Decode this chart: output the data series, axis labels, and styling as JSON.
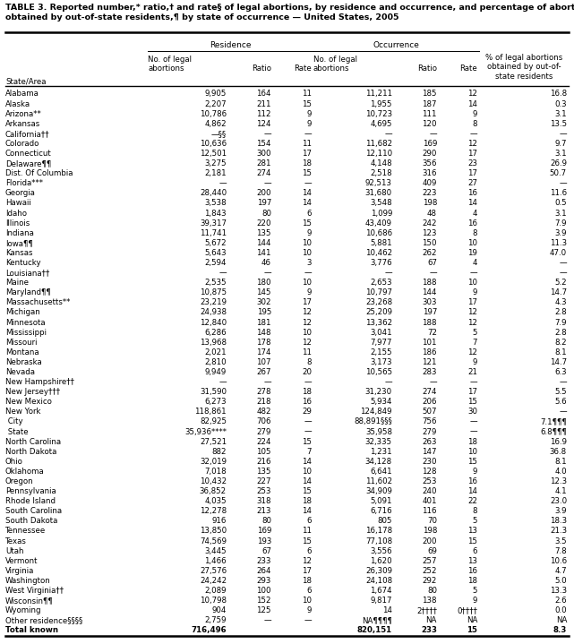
{
  "title_line1": "TABLE 3. Reported number,* ratio,† and rate§ of legal abortions, by residence and occurrence, and percentage of abortions",
  "title_line2": "obtained by out-of-state residents,¶ by state of occurrence — United States, 2005",
  "col_headers_row1": [
    "",
    "Residence",
    "",
    "",
    "Occurrence",
    "",
    "",
    "% of legal abortions"
  ],
  "col_headers_row2": [
    "State/Area",
    "No. of legal\nabortions",
    "Ratio",
    "Rate",
    "No. of legal\nabortions",
    "Ratio",
    "Rate",
    "obtained by out-of-\nstate residents"
  ],
  "rows": [
    [
      "Alabama",
      "9,905",
      "164",
      "11",
      "11,211",
      "185",
      "12",
      "16.8"
    ],
    [
      "Alaska",
      "2,207",
      "211",
      "15",
      "1,955",
      "187",
      "14",
      "0.3"
    ],
    [
      "Arizona**",
      "10,786",
      "112",
      "9",
      "10,723",
      "111",
      "9",
      "3.1"
    ],
    [
      "Arkansas",
      "4,862",
      "124",
      "9",
      "4,695",
      "120",
      "8",
      "13.5"
    ],
    [
      "California††",
      "—§§",
      "—",
      "—",
      "—",
      "—",
      "—",
      "—"
    ],
    [
      "Colorado",
      "10,636",
      "154",
      "11",
      "11,682",
      "169",
      "12",
      "9.7"
    ],
    [
      "Connecticut",
      "12,501",
      "300",
      "17",
      "12,110",
      "290",
      "17",
      "3.1"
    ],
    [
      "Delaware¶¶",
      "3,275",
      "281",
      "18",
      "4,148",
      "356",
      "23",
      "26.9"
    ],
    [
      "Dist. Of Columbia",
      "2,181",
      "274",
      "15",
      "2,518",
      "316",
      "17",
      "50.7"
    ],
    [
      "Florida***",
      "—",
      "—",
      "—",
      "92,513",
      "409",
      "27",
      "—"
    ],
    [
      "Georgia",
      "28,440",
      "200",
      "14",
      "31,680",
      "223",
      "16",
      "11.6"
    ],
    [
      "Hawaii",
      "3,538",
      "197",
      "14",
      "3,548",
      "198",
      "14",
      "0.5"
    ],
    [
      "Idaho",
      "1,843",
      "80",
      "6",
      "1,099",
      "48",
      "4",
      "3.1"
    ],
    [
      "Illinois",
      "39,317",
      "220",
      "15",
      "43,409",
      "242",
      "16",
      "7.9"
    ],
    [
      "Indiana",
      "11,741",
      "135",
      "9",
      "10,686",
      "123",
      "8",
      "3.9"
    ],
    [
      "Iowa¶¶",
      "5,672",
      "144",
      "10",
      "5,881",
      "150",
      "10",
      "11.3"
    ],
    [
      "Kansas",
      "5,643",
      "141",
      "10",
      "10,462",
      "262",
      "19",
      "47.0"
    ],
    [
      "Kentucky",
      "2,594",
      "46",
      "3",
      "3,776",
      "67",
      "4",
      "—"
    ],
    [
      "Louisiana††",
      "—",
      "—",
      "—",
      "—",
      "—",
      "—",
      "—"
    ],
    [
      "Maine",
      "2,535",
      "180",
      "10",
      "2,653",
      "188",
      "10",
      "5.2"
    ],
    [
      "Maryland¶¶",
      "10,875",
      "145",
      "9",
      "10,797",
      "144",
      "9",
      "14.7"
    ],
    [
      "Massachusetts**",
      "23,219",
      "302",
      "17",
      "23,268",
      "303",
      "17",
      "4.3"
    ],
    [
      "Michigan",
      "24,938",
      "195",
      "12",
      "25,209",
      "197",
      "12",
      "2.8"
    ],
    [
      "Minnesota",
      "12,840",
      "181",
      "12",
      "13,362",
      "188",
      "12",
      "7.9"
    ],
    [
      "Mississippi",
      "6,286",
      "148",
      "10",
      "3,041",
      "72",
      "5",
      "2.8"
    ],
    [
      "Missouri",
      "13,968",
      "178",
      "12",
      "7,977",
      "101",
      "7",
      "8.2"
    ],
    [
      "Montana",
      "2,021",
      "174",
      "11",
      "2,155",
      "186",
      "12",
      "8.1"
    ],
    [
      "Nebraska",
      "2,810",
      "107",
      "8",
      "3,173",
      "121",
      "9",
      "14.7"
    ],
    [
      "Nevada",
      "9,949",
      "267",
      "20",
      "10,565",
      "283",
      "21",
      "6.3"
    ],
    [
      "New Hampshire††",
      "—",
      "—",
      "—",
      "—",
      "—",
      "—",
      "—"
    ],
    [
      "New Jersey†††",
      "31,590",
      "278",
      "18",
      "31,230",
      "274",
      "17",
      "5.5"
    ],
    [
      "New Mexico",
      "6,273",
      "218",
      "16",
      "5,934",
      "206",
      "15",
      "5.6"
    ],
    [
      "New York",
      "118,861",
      "482",
      "29",
      "124,849",
      "507",
      "30",
      "—"
    ],
    [
      " City",
      "82,925",
      "706",
      "—",
      "88,891§§§",
      "756",
      "—",
      "7.1¶¶¶"
    ],
    [
      " State",
      "35,936****",
      "279",
      "—",
      "35,958",
      "279",
      "—",
      "6.8¶¶¶"
    ],
    [
      "North Carolina",
      "27,521",
      "224",
      "15",
      "32,335",
      "263",
      "18",
      "16.9"
    ],
    [
      "North Dakota",
      "882",
      "105",
      "7",
      "1,231",
      "147",
      "10",
      "36.8"
    ],
    [
      "Ohio",
      "32,019",
      "216",
      "14",
      "34,128",
      "230",
      "15",
      "8.1"
    ],
    [
      "Oklahoma",
      "7,018",
      "135",
      "10",
      "6,641",
      "128",
      "9",
      "4.0"
    ],
    [
      "Oregon",
      "10,432",
      "227",
      "14",
      "11,602",
      "253",
      "16",
      "12.3"
    ],
    [
      "Pennsylvania",
      "36,852",
      "253",
      "15",
      "34,909",
      "240",
      "14",
      "4.1"
    ],
    [
      "Rhode Island",
      "4,035",
      "318",
      "18",
      "5,091",
      "401",
      "22",
      "23.0"
    ],
    [
      "South Carolina",
      "12,278",
      "213",
      "14",
      "6,716",
      "116",
      "8",
      "3.9"
    ],
    [
      "South Dakota",
      "916",
      "80",
      "6",
      "805",
      "70",
      "5",
      "18.3"
    ],
    [
      "Tennessee",
      "13,850",
      "169",
      "11",
      "16,178",
      "198",
      "13",
      "21.3"
    ],
    [
      "Texas",
      "74,569",
      "193",
      "15",
      "77,108",
      "200",
      "15",
      "3.5"
    ],
    [
      "Utah",
      "3,445",
      "67",
      "6",
      "3,556",
      "69",
      "6",
      "7.8"
    ],
    [
      "Vermont",
      "1,466",
      "233",
      "12",
      "1,620",
      "257",
      "13",
      "10.6"
    ],
    [
      "Virginia",
      "27,576",
      "264",
      "17",
      "26,309",
      "252",
      "16",
      "4.7"
    ],
    [
      "Washington",
      "24,242",
      "293",
      "18",
      "24,108",
      "292",
      "18",
      "5.0"
    ],
    [
      "West Virginia††",
      "2,089",
      "100",
      "6",
      "1,674",
      "80",
      "5",
      "13.3"
    ],
    [
      "Wisconsin¶¶",
      "10,798",
      "152",
      "10",
      "9,817",
      "138",
      "9",
      "2.6"
    ],
    [
      "Wyoming",
      "904",
      "125",
      "9",
      "14",
      "2††††",
      "0††††",
      "0.0"
    ],
    [
      "Other residence§§§§",
      "2,759",
      "—",
      "—",
      "NA¶¶¶¶",
      "NA",
      "NA",
      "NA"
    ],
    [
      "Total known",
      "716,496",
      "",
      "",
      "820,151",
      "233",
      "15",
      "8.3"
    ]
  ],
  "last_row_bold": true,
  "font_size": 6.2,
  "title_font_size": 6.8
}
